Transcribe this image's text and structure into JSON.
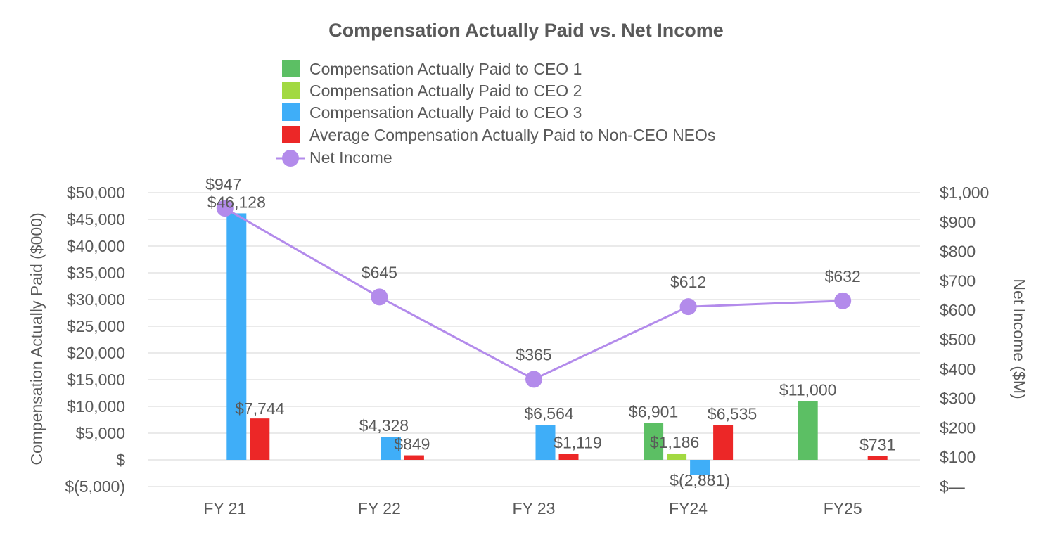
{
  "chart_data": {
    "type": "bar",
    "title": "Compensation Actually Paid vs. Net Income",
    "categories": [
      "FY 21",
      "FY 22",
      "FY 23",
      "FY24",
      "FY25"
    ],
    "ylabel": "Compensation Actually Paid ($000)",
    "y2label": "Net Income ($M)",
    "ylim": [
      -5000,
      50000
    ],
    "y2lim": [
      0,
      1000
    ],
    "y_ticks": [
      {
        "value": 50000,
        "label": "$50,000"
      },
      {
        "value": 45000,
        "label": "$45,000"
      },
      {
        "value": 40000,
        "label": "$40,000"
      },
      {
        "value": 35000,
        "label": "$35,000"
      },
      {
        "value": 30000,
        "label": "$30,000"
      },
      {
        "value": 25000,
        "label": "$25,000"
      },
      {
        "value": 20000,
        "label": "$20,000"
      },
      {
        "value": 15000,
        "label": "$15,000"
      },
      {
        "value": 10000,
        "label": "$10,000"
      },
      {
        "value": 5000,
        "label": "$5,000"
      },
      {
        "value": 0,
        "label": "$"
      },
      {
        "value": -5000,
        "label": "$(5,000)"
      }
    ],
    "y2_ticks": [
      {
        "value": 1000,
        "label": "$1,000"
      },
      {
        "value": 900,
        "label": "$900"
      },
      {
        "value": 800,
        "label": "$800"
      },
      {
        "value": 700,
        "label": "$700"
      },
      {
        "value": 600,
        "label": "$600"
      },
      {
        "value": 500,
        "label": "$500"
      },
      {
        "value": 400,
        "label": "$400"
      },
      {
        "value": 300,
        "label": "$300"
      },
      {
        "value": 200,
        "label": "$200"
      },
      {
        "value": 100,
        "label": "$100"
      },
      {
        "value": 0,
        "label": "$—"
      }
    ],
    "series": [
      {
        "name": "Compensation Actually Paid to CEO 1",
        "color": "#5CBF64",
        "values": [
          null,
          null,
          null,
          6901,
          11000
        ],
        "labels": [
          null,
          null,
          null,
          "$6,901",
          "$11,000"
        ]
      },
      {
        "name": "Compensation Actually Paid to CEO 2",
        "color": "#A2D941",
        "values": [
          null,
          null,
          null,
          1186,
          null
        ],
        "labels": [
          null,
          null,
          null,
          "$1,186",
          null
        ]
      },
      {
        "name": "Compensation Actually Paid to CEO 3",
        "color": "#3FAEF8",
        "values": [
          46128,
          4328,
          6564,
          -2881,
          null
        ],
        "labels": [
          "$46,128",
          "$4,328",
          "$6,564",
          "$(2,881)",
          null
        ]
      },
      {
        "name": "Average Compensation Actually Paid to Non-CEO NEOs",
        "color": "#EC2727",
        "values": [
          7744,
          849,
          1119,
          6535,
          731
        ],
        "labels": [
          "$7,744",
          "$849",
          "$1,119",
          "$6,535",
          "$731"
        ]
      }
    ],
    "line_series": {
      "name": "Net Income",
      "color": "#B38BEB",
      "axis": "right",
      "values": [
        947,
        645,
        365,
        612,
        632
      ],
      "labels": [
        "$947",
        "$645",
        "$365",
        "$612",
        "$632"
      ]
    },
    "grid": true,
    "legend_position": "top"
  }
}
